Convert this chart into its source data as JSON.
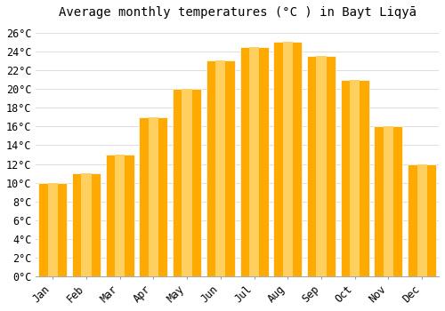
{
  "title": "Average monthly temperatures (°C ) in Bayt Liqyā",
  "months": [
    "Jan",
    "Feb",
    "Mar",
    "Apr",
    "May",
    "Jun",
    "Jul",
    "Aug",
    "Sep",
    "Oct",
    "Nov",
    "Dec"
  ],
  "values": [
    10.0,
    11.0,
    13.0,
    17.0,
    20.0,
    23.0,
    24.5,
    25.0,
    23.5,
    21.0,
    16.0,
    12.0
  ],
  "bar_color_main": "#FFAA00",
  "bar_color_light": "#FFD060",
  "background_color": "#FFFFFF",
  "grid_color": "#DDDDDD",
  "ylim_max": 27,
  "ytick_step": 2,
  "title_fontsize": 10,
  "tick_fontsize": 8.5,
  "bar_width": 0.85
}
